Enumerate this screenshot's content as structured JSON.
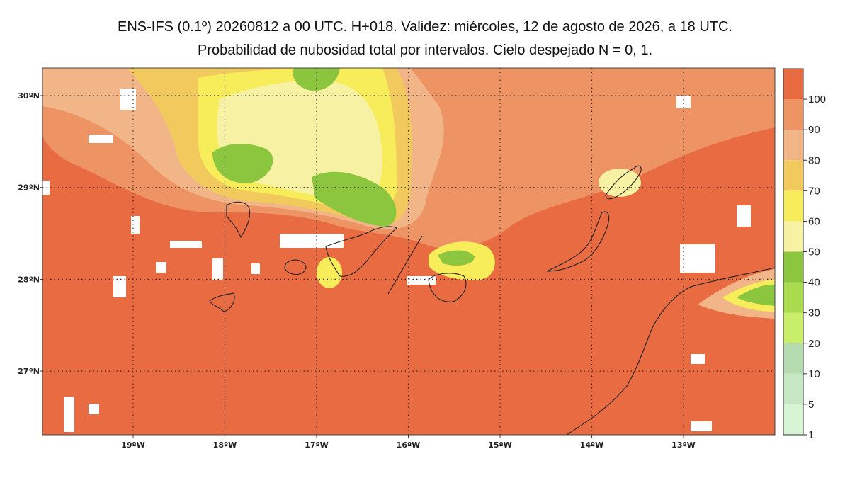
{
  "title_line1": "ENS-IFS (0.1º) 20260812 a 00 UTC. H+018. Validez: miércoles, 12 de agosto de 2026, a 18 UTC.",
  "title_line2": "Probabilidad de nubosidad total por intervalos. Cielo despejado N = 0, 1.",
  "lat_labels": [
    {
      "label": "30ºN",
      "lat": 30
    },
    {
      "label": "29ºN",
      "lat": 29
    },
    {
      "label": "28ºN",
      "lat": 28
    },
    {
      "label": "27ºN",
      "lat": 27
    }
  ],
  "lon_labels": [
    {
      "label": "19ºW",
      "lon": -19
    },
    {
      "label": "18ºW",
      "lon": -18
    },
    {
      "label": "17ºW",
      "lon": -17
    },
    {
      "label": "16ºW",
      "lon": -16
    },
    {
      "label": "15ºW",
      "lon": -15
    },
    {
      "label": "14ºW",
      "lon": -14
    },
    {
      "label": "13ºW",
      "lon": -13
    }
  ],
  "colorbar": {
    "levels": [
      1,
      5,
      10,
      20,
      30,
      40,
      50,
      60,
      70,
      80,
      90,
      100
    ],
    "labels": [
      "1",
      "5",
      "10",
      "20",
      "30",
      "40",
      "50",
      "60",
      "70",
      "80",
      "90",
      "100"
    ],
    "colors": [
      "#d7f5d4",
      "#c6e8c4",
      "#b4dcb0",
      "#c8ee6a",
      "#a9dc4e",
      "#8cc63e",
      "#f7f2a3",
      "#f7ec5a",
      "#f1c95c",
      "#f2b587",
      "#ee9364",
      "#e96b42"
    ]
  },
  "colors": {
    "background_fill": "#e96b42",
    "grid_line": "#333333",
    "coastline": "#222222"
  }
}
